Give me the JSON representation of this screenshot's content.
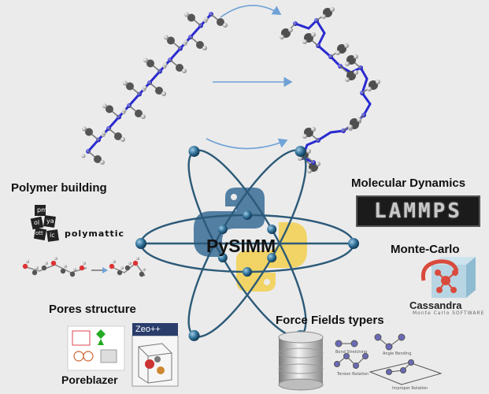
{
  "center": {
    "title": "PySIMM"
  },
  "sections": {
    "polymer_building": {
      "title": "Polymer building",
      "logo_text": "polymattic",
      "tile_letters": [
        "pm",
        "ol",
        "ya",
        "ott",
        "ic"
      ]
    },
    "molecular_dynamics": {
      "title": "Molecular Dynamics",
      "software": "LAMMPS"
    },
    "monte_carlo": {
      "title": "Monte-Carlo",
      "software": "Cassandra",
      "software_sub": "Monte Carlo SOFTWARE"
    },
    "pores_structure": {
      "title": "Pores structure",
      "tools": [
        "Poreblazer",
        "Zeo++"
      ]
    },
    "force_fields": {
      "title": "Force Fields typers",
      "panel_captions": [
        "Bond Stretching",
        "Angle Bending",
        "Torsion Rotation",
        "Improper Rotation"
      ]
    }
  },
  "colors": {
    "background": "#ebebeb",
    "backbone": "#2a2ad0",
    "arrow": "#6fa2d6",
    "node": "#2f6f96",
    "python_blue": "#3e6f98",
    "python_yellow": "#f2d256"
  }
}
